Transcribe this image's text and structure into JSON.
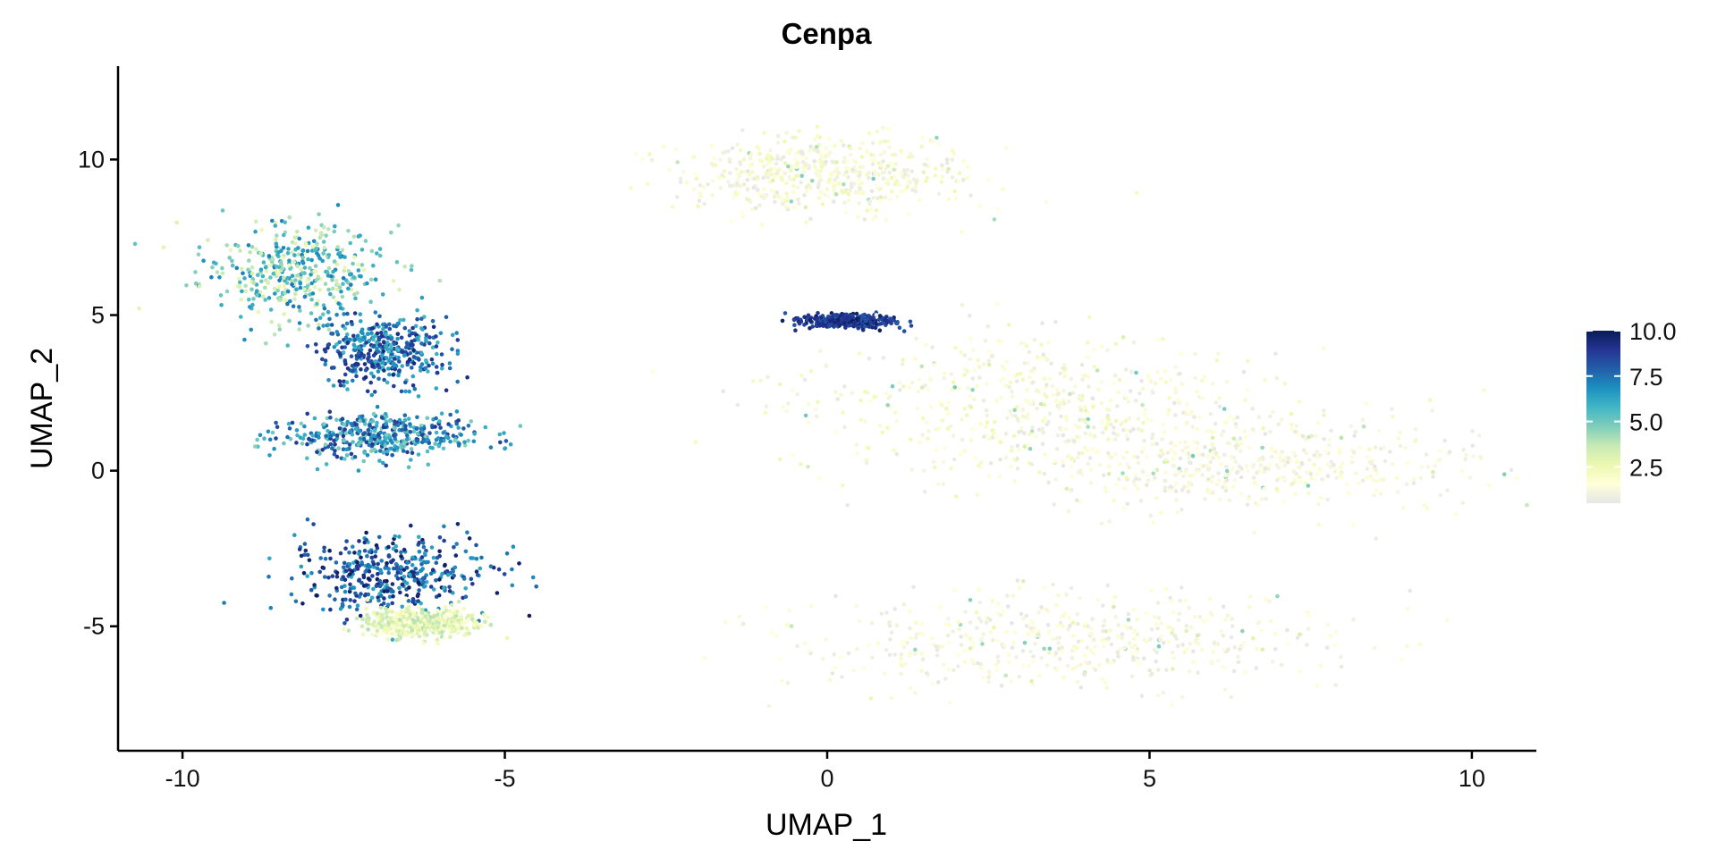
{
  "chart_data": {
    "type": "scatter",
    "title": "Cenpa",
    "xlabel": "UMAP_1",
    "ylabel": "UMAP_2",
    "xlim": [
      -11,
      11
    ],
    "ylim": [
      -9,
      13
    ],
    "x_ticks": [
      -10,
      -5,
      0,
      5,
      10
    ],
    "x_tick_labels": [
      "-10",
      "-5",
      "0",
      "5",
      "10"
    ],
    "y_ticks": [
      -5,
      0,
      5,
      10
    ],
    "y_tick_labels": [
      "-5",
      "0",
      "5",
      "10"
    ],
    "grid": false,
    "color_scale": {
      "name": "expression",
      "min": 0.5,
      "max": 10.0,
      "ticks": [
        2.5,
        5.0,
        7.5,
        10.0
      ],
      "tick_labels": [
        "2.5",
        "5.0",
        "7.5",
        "10.0"
      ],
      "colors": [
        "#e6e6e6",
        "#ffffd9",
        "#edf8b1",
        "#c7e9b4",
        "#7fcdbb",
        "#41b6c4",
        "#1d91c0",
        "#225ea8",
        "#253494",
        "#081d58"
      ],
      "legend_position": "right"
    },
    "clusters": [
      {
        "region": "upper-left lobe",
        "center": [
          -8.3,
          6.4
        ],
        "spread": [
          1.0,
          1.1
        ],
        "value_range": [
          2.5,
          7.5
        ]
      },
      {
        "region": "upper-left dense",
        "center": [
          -6.9,
          3.8
        ],
        "spread": [
          0.7,
          0.8
        ],
        "value_range": [
          5.5,
          9.5
        ]
      },
      {
        "region": "middle-left band",
        "center": [
          -7.0,
          1.1
        ],
        "spread": [
          1.1,
          0.5
        ],
        "value_range": [
          4.5,
          9.0
        ]
      },
      {
        "region": "lower-left dense",
        "center": [
          -6.8,
          -3.3
        ],
        "spread": [
          1.1,
          0.9
        ],
        "value_range": [
          6.0,
          10.0
        ]
      },
      {
        "region": "lower-left tail",
        "center": [
          -6.3,
          -4.9
        ],
        "spread": [
          0.6,
          0.3
        ],
        "value_range": [
          1.5,
          4.0
        ]
      },
      {
        "region": "streak near origin",
        "center": [
          0.3,
          4.8
        ],
        "spread": [
          0.5,
          0.15
        ],
        "value_range": [
          8.0,
          10.0
        ]
      },
      {
        "region": "top branch",
        "center": [
          0.0,
          9.5
        ],
        "spread": [
          1.6,
          0.9
        ],
        "value_range": [
          0.5,
          2.5
        ]
      },
      {
        "region": "central arm",
        "center": [
          3.2,
          2.2
        ],
        "spread": [
          2.8,
          1.6
        ],
        "value_range": [
          0.5,
          2.5
        ]
      },
      {
        "region": "right tip",
        "center": [
          6.5,
          0.2
        ],
        "spread": [
          2.6,
          1.1
        ],
        "value_range": [
          0.5,
          2.0
        ]
      },
      {
        "region": "lower-right lobe",
        "center": [
          3.8,
          -5.5
        ],
        "spread": [
          3.0,
          1.1
        ],
        "value_range": [
          0.5,
          2.0
        ]
      }
    ]
  }
}
